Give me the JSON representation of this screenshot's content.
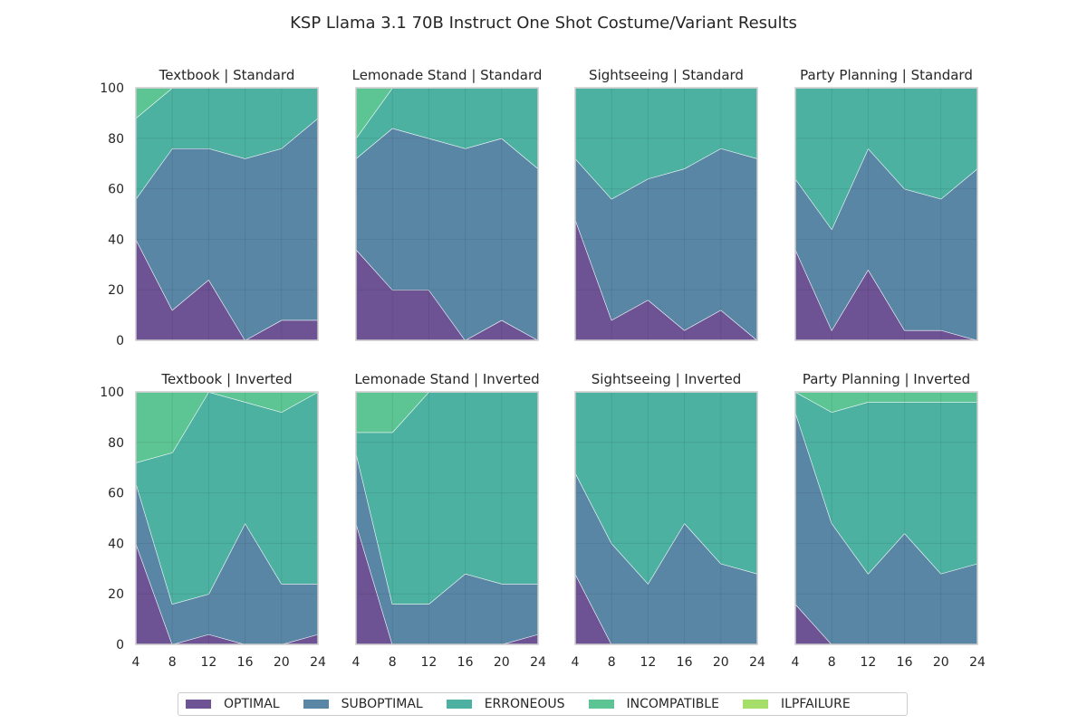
{
  "figure": {
    "title": "KSP Llama 3.1 70B Instruct One Shot Costume/Variant Results"
  },
  "legend": {
    "items": [
      {
        "label": "OPTIMAL",
        "color": "#482878"
      },
      {
        "label": "SUBOPTIMAL",
        "color": "#31688e"
      },
      {
        "label": "ERRONEOUS",
        "color": "#1f9e89"
      },
      {
        "label": "INCOMPATIBLE",
        "color": "#35b779"
      },
      {
        "label": "ILPFAILURE",
        "color": "#8fd744"
      }
    ]
  },
  "chart_data": [
    {
      "type": "area",
      "title": "Textbook | Standard",
      "x": [
        4,
        8,
        12,
        16,
        20,
        24
      ],
      "ylim": [
        0,
        100
      ],
      "xlim": [
        4,
        24
      ],
      "series": [
        {
          "name": "OPTIMAL",
          "values": [
            40,
            12,
            24,
            0,
            8,
            8
          ]
        },
        {
          "name": "SUBOPTIMAL",
          "values": [
            16,
            64,
            52,
            72,
            68,
            80
          ]
        },
        {
          "name": "ERRONEOUS",
          "values": [
            32,
            24,
            24,
            28,
            24,
            12
          ]
        },
        {
          "name": "INCOMPATIBLE",
          "values": [
            12,
            0,
            0,
            0,
            0,
            0
          ]
        },
        {
          "name": "ILPFAILURE",
          "values": [
            0,
            0,
            0,
            0,
            0,
            0
          ]
        }
      ]
    },
    {
      "type": "area",
      "title": "Lemonade Stand | Standard",
      "x": [
        4,
        8,
        12,
        16,
        20,
        24
      ],
      "ylim": [
        0,
        100
      ],
      "xlim": [
        4,
        24
      ],
      "series": [
        {
          "name": "OPTIMAL",
          "values": [
            36,
            20,
            20,
            0,
            8,
            0
          ]
        },
        {
          "name": "SUBOPTIMAL",
          "values": [
            36,
            64,
            60,
            76,
            72,
            68
          ]
        },
        {
          "name": "ERRONEOUS",
          "values": [
            8,
            16,
            20,
            24,
            20,
            32
          ]
        },
        {
          "name": "INCOMPATIBLE",
          "values": [
            20,
            0,
            0,
            0,
            0,
            0
          ]
        },
        {
          "name": "ILPFAILURE",
          "values": [
            0,
            0,
            0,
            0,
            0,
            0
          ]
        }
      ]
    },
    {
      "type": "area",
      "title": "Sightseeing | Standard",
      "x": [
        4,
        8,
        12,
        16,
        20,
        24
      ],
      "ylim": [
        0,
        100
      ],
      "xlim": [
        4,
        24
      ],
      "series": [
        {
          "name": "OPTIMAL",
          "values": [
            48,
            8,
            16,
            4,
            12,
            0
          ]
        },
        {
          "name": "SUBOPTIMAL",
          "values": [
            24,
            48,
            48,
            64,
            64,
            72
          ]
        },
        {
          "name": "ERRONEOUS",
          "values": [
            28,
            44,
            36,
            32,
            24,
            28
          ]
        },
        {
          "name": "INCOMPATIBLE",
          "values": [
            0,
            0,
            0,
            0,
            0,
            0
          ]
        },
        {
          "name": "ILPFAILURE",
          "values": [
            0,
            0,
            0,
            0,
            0,
            0
          ]
        }
      ]
    },
    {
      "type": "area",
      "title": "Party Planning | Standard",
      "x": [
        4,
        8,
        12,
        16,
        20,
        24
      ],
      "ylim": [
        0,
        100
      ],
      "xlim": [
        4,
        24
      ],
      "series": [
        {
          "name": "OPTIMAL",
          "values": [
            36,
            4,
            28,
            4,
            4,
            0
          ]
        },
        {
          "name": "SUBOPTIMAL",
          "values": [
            28,
            40,
            48,
            56,
            52,
            68
          ]
        },
        {
          "name": "ERRONEOUS",
          "values": [
            36,
            56,
            24,
            40,
            44,
            32
          ]
        },
        {
          "name": "INCOMPATIBLE",
          "values": [
            0,
            0,
            0,
            0,
            0,
            0
          ]
        },
        {
          "name": "ILPFAILURE",
          "values": [
            0,
            0,
            0,
            0,
            0,
            0
          ]
        }
      ]
    },
    {
      "type": "area",
      "title": "Textbook | Inverted",
      "x": [
        4,
        8,
        12,
        16,
        20,
        24
      ],
      "ylim": [
        0,
        100
      ],
      "xlim": [
        4,
        24
      ],
      "series": [
        {
          "name": "OPTIMAL",
          "values": [
            40,
            0,
            4,
            0,
            0,
            4
          ]
        },
        {
          "name": "SUBOPTIMAL",
          "values": [
            24,
            16,
            16,
            48,
            24,
            20
          ]
        },
        {
          "name": "ERRONEOUS",
          "values": [
            8,
            60,
            80,
            48,
            68,
            76
          ]
        },
        {
          "name": "INCOMPATIBLE",
          "values": [
            28,
            24,
            0,
            4,
            8,
            0
          ]
        },
        {
          "name": "ILPFAILURE",
          "values": [
            0,
            0,
            0,
            0,
            0,
            0
          ]
        }
      ]
    },
    {
      "type": "area",
      "title": "Lemonade Stand | Inverted",
      "x": [
        4,
        8,
        12,
        16,
        20,
        24
      ],
      "ylim": [
        0,
        100
      ],
      "xlim": [
        4,
        24
      ],
      "series": [
        {
          "name": "OPTIMAL",
          "values": [
            48,
            0,
            0,
            0,
            0,
            4
          ]
        },
        {
          "name": "SUBOPTIMAL",
          "values": [
            28,
            16,
            16,
            28,
            24,
            20
          ]
        },
        {
          "name": "ERRONEOUS",
          "values": [
            8,
            68,
            84,
            72,
            76,
            76
          ]
        },
        {
          "name": "INCOMPATIBLE",
          "values": [
            16,
            16,
            0,
            0,
            0,
            0
          ]
        },
        {
          "name": "ILPFAILURE",
          "values": [
            0,
            0,
            0,
            0,
            0,
            0
          ]
        }
      ]
    },
    {
      "type": "area",
      "title": "Sightseeing | Inverted",
      "x": [
        4,
        8,
        12,
        16,
        20,
        24
      ],
      "ylim": [
        0,
        100
      ],
      "xlim": [
        4,
        24
      ],
      "series": [
        {
          "name": "OPTIMAL",
          "values": [
            28,
            0,
            0,
            0,
            0,
            0
          ]
        },
        {
          "name": "SUBOPTIMAL",
          "values": [
            40,
            40,
            24,
            48,
            32,
            28
          ]
        },
        {
          "name": "ERRONEOUS",
          "values": [
            32,
            60,
            76,
            52,
            68,
            72
          ]
        },
        {
          "name": "INCOMPATIBLE",
          "values": [
            0,
            0,
            0,
            0,
            0,
            0
          ]
        },
        {
          "name": "ILPFAILURE",
          "values": [
            0,
            0,
            0,
            0,
            0,
            0
          ]
        }
      ]
    },
    {
      "type": "area",
      "title": "Party Planning | Inverted",
      "x": [
        4,
        8,
        12,
        16,
        20,
        24
      ],
      "ylim": [
        0,
        100
      ],
      "xlim": [
        4,
        24
      ],
      "series": [
        {
          "name": "OPTIMAL",
          "values": [
            16,
            0,
            0,
            0,
            0,
            0
          ]
        },
        {
          "name": "SUBOPTIMAL",
          "values": [
            76,
            48,
            28,
            44,
            28,
            32
          ]
        },
        {
          "name": "ERRONEOUS",
          "values": [
            8,
            44,
            68,
            52,
            68,
            64
          ]
        },
        {
          "name": "INCOMPATIBLE",
          "values": [
            0,
            8,
            4,
            4,
            4,
            4
          ]
        },
        {
          "name": "ILPFAILURE",
          "values": [
            0,
            0,
            0,
            0,
            0,
            0
          ]
        }
      ]
    }
  ],
  "axes": {
    "xticks": [
      "4",
      "8",
      "12",
      "16",
      "20",
      "24"
    ],
    "yticks": [
      "0",
      "20",
      "40",
      "60",
      "80",
      "100"
    ]
  }
}
